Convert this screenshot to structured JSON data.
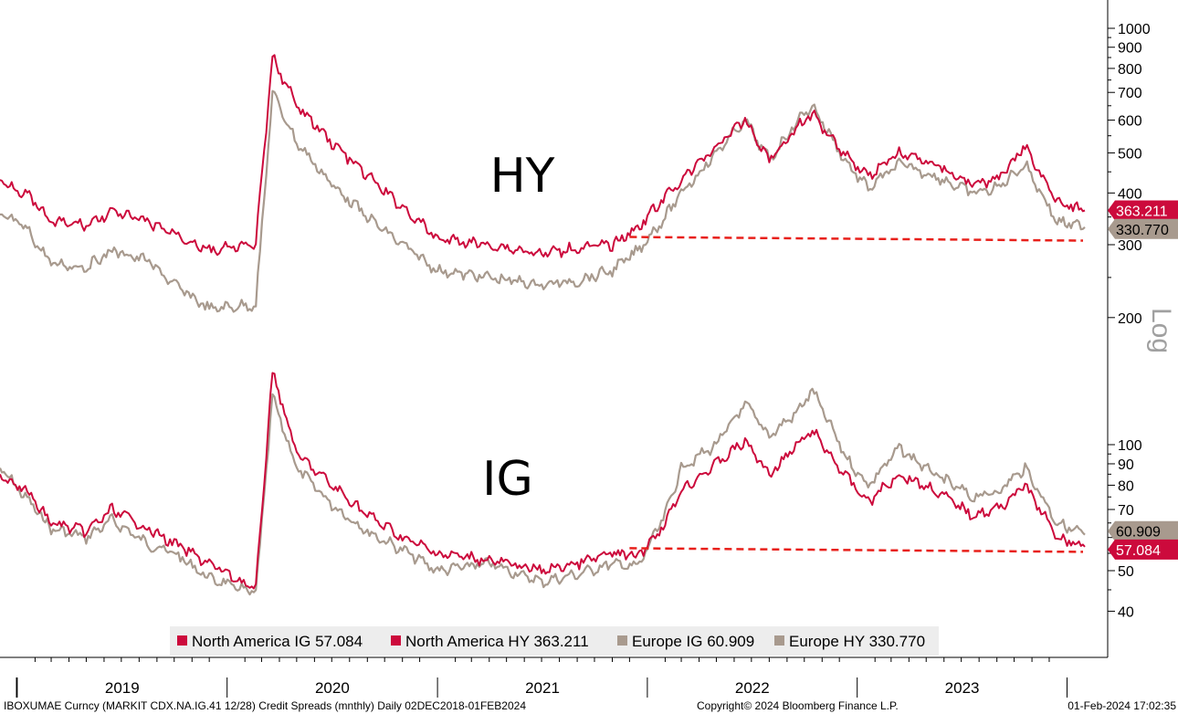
{
  "chart_data": {
    "type": "line",
    "scale": "log",
    "axis_label": "Log",
    "panels": [
      {
        "name": "HY",
        "y_ticks": [
          200,
          300,
          400,
          500,
          600,
          700,
          800,
          900,
          1000
        ],
        "reference_line": {
          "value": 310,
          "from": "2021-12-01",
          "to": "2024-02-01"
        }
      },
      {
        "name": "IG",
        "y_ticks": [
          40,
          50,
          60,
          70,
          80,
          90,
          100
        ],
        "reference_line": {
          "value": 56,
          "from": "2021-12-01",
          "to": "2024-02-01"
        }
      }
    ],
    "x_ticks": [
      "2019",
      "2020",
      "2021",
      "2022",
      "2023"
    ],
    "series": [
      {
        "name": "North America IG",
        "last": "57.084",
        "color": "#cc0a3c",
        "panel": "IG",
        "points": [
          [
            "2018-12-02",
            85
          ],
          [
            "2019-01-15",
            78
          ],
          [
            "2019-03-01",
            65
          ],
          [
            "2019-05-01",
            62
          ],
          [
            "2019-06-15",
            70
          ],
          [
            "2019-08-15",
            63
          ],
          [
            "2019-10-01",
            58
          ],
          [
            "2019-12-01",
            52
          ],
          [
            "2020-02-20",
            45
          ],
          [
            "2020-03-20",
            150
          ],
          [
            "2020-05-01",
            95
          ],
          [
            "2020-07-01",
            80
          ],
          [
            "2020-09-01",
            68
          ],
          [
            "2020-11-01",
            60
          ],
          [
            "2021-01-01",
            55
          ],
          [
            "2021-04-01",
            53
          ],
          [
            "2021-07-01",
            50
          ],
          [
            "2021-09-01",
            52
          ],
          [
            "2021-11-01",
            55
          ],
          [
            "2021-12-15",
            54
          ],
          [
            "2022-02-01",
            65
          ],
          [
            "2022-03-01",
            78
          ],
          [
            "2022-05-01",
            90
          ],
          [
            "2022-06-20",
            102
          ],
          [
            "2022-08-01",
            85
          ],
          [
            "2022-09-20",
            100
          ],
          [
            "2022-10-15",
            108
          ],
          [
            "2022-12-15",
            83
          ],
          [
            "2023-01-20",
            73
          ],
          [
            "2023-03-15",
            85
          ],
          [
            "2023-05-15",
            78
          ],
          [
            "2023-07-20",
            68
          ],
          [
            "2023-09-01",
            70
          ],
          [
            "2023-10-20",
            80
          ],
          [
            "2023-12-15",
            60
          ],
          [
            "2024-02-01",
            57
          ]
        ]
      },
      {
        "name": "North America HY",
        "last": "363.211",
        "color": "#cc0a3c",
        "panel": "HY",
        "points": [
          [
            "2018-12-02",
            430
          ],
          [
            "2019-01-15",
            400
          ],
          [
            "2019-03-01",
            340
          ],
          [
            "2019-05-01",
            335
          ],
          [
            "2019-06-15",
            360
          ],
          [
            "2019-08-15",
            340
          ],
          [
            "2019-10-01",
            320
          ],
          [
            "2019-12-01",
            290
          ],
          [
            "2020-02-20",
            300
          ],
          [
            "2020-03-20",
            850
          ],
          [
            "2020-05-01",
            650
          ],
          [
            "2020-07-01",
            530
          ],
          [
            "2020-09-01",
            440
          ],
          [
            "2020-11-01",
            370
          ],
          [
            "2021-01-01",
            310
          ],
          [
            "2021-04-01",
            300
          ],
          [
            "2021-07-01",
            285
          ],
          [
            "2021-09-01",
            295
          ],
          [
            "2021-11-01",
            300
          ],
          [
            "2021-12-15",
            330
          ],
          [
            "2022-02-01",
            390
          ],
          [
            "2022-03-01",
            430
          ],
          [
            "2022-05-01",
            520
          ],
          [
            "2022-06-20",
            600
          ],
          [
            "2022-08-01",
            480
          ],
          [
            "2022-09-20",
            580
          ],
          [
            "2022-10-15",
            620
          ],
          [
            "2022-12-15",
            490
          ],
          [
            "2023-01-20",
            440
          ],
          [
            "2023-03-15",
            500
          ],
          [
            "2023-05-15",
            470
          ],
          [
            "2023-07-20",
            420
          ],
          [
            "2023-09-01",
            430
          ],
          [
            "2023-10-20",
            520
          ],
          [
            "2023-12-15",
            380
          ],
          [
            "2024-02-01",
            363
          ]
        ]
      },
      {
        "name": "Europe IG",
        "last": "60.909",
        "color": "#a89a8e",
        "panel": "IG",
        "points": [
          [
            "2018-12-02",
            88
          ],
          [
            "2019-01-15",
            75
          ],
          [
            "2019-03-01",
            63
          ],
          [
            "2019-05-01",
            60
          ],
          [
            "2019-06-15",
            66
          ],
          [
            "2019-08-15",
            58
          ],
          [
            "2019-10-01",
            55
          ],
          [
            "2019-12-01",
            48
          ],
          [
            "2020-02-20",
            44
          ],
          [
            "2020-03-20",
            130
          ],
          [
            "2020-05-01",
            88
          ],
          [
            "2020-07-01",
            72
          ],
          [
            "2020-09-01",
            62
          ],
          [
            "2020-11-01",
            56
          ],
          [
            "2021-01-01",
            50
          ],
          [
            "2021-04-01",
            52
          ],
          [
            "2021-07-01",
            47
          ],
          [
            "2021-09-01",
            49
          ],
          [
            "2021-11-01",
            52
          ],
          [
            "2021-12-15",
            51
          ],
          [
            "2022-02-01",
            68
          ],
          [
            "2022-03-01",
            88
          ],
          [
            "2022-05-01",
            100
          ],
          [
            "2022-06-20",
            125
          ],
          [
            "2022-08-01",
            105
          ],
          [
            "2022-09-20",
            120
          ],
          [
            "2022-10-15",
            135
          ],
          [
            "2022-12-15",
            92
          ],
          [
            "2023-01-20",
            80
          ],
          [
            "2023-03-15",
            98
          ],
          [
            "2023-05-15",
            85
          ],
          [
            "2023-07-20",
            75
          ],
          [
            "2023-09-01",
            77
          ],
          [
            "2023-10-20",
            88
          ],
          [
            "2023-12-15",
            65
          ],
          [
            "2024-02-01",
            60.9
          ]
        ]
      },
      {
        "name": "Europe HY",
        "last": "330.770",
        "color": "#a89a8e",
        "panel": "HY",
        "points": [
          [
            "2018-12-02",
            355
          ],
          [
            "2019-01-15",
            330
          ],
          [
            "2019-03-01",
            270
          ],
          [
            "2019-05-01",
            265
          ],
          [
            "2019-06-15",
            290
          ],
          [
            "2019-08-15",
            275
          ],
          [
            "2019-10-01",
            240
          ],
          [
            "2019-12-01",
            210
          ],
          [
            "2020-02-20",
            215
          ],
          [
            "2020-03-20",
            700
          ],
          [
            "2020-05-01",
            530
          ],
          [
            "2020-07-01",
            420
          ],
          [
            "2020-09-01",
            350
          ],
          [
            "2020-11-01",
            300
          ],
          [
            "2021-01-01",
            260
          ],
          [
            "2021-04-01",
            250
          ],
          [
            "2021-07-01",
            240
          ],
          [
            "2021-09-01",
            245
          ],
          [
            "2021-11-01",
            260
          ],
          [
            "2021-12-15",
            290
          ],
          [
            "2022-02-01",
            350
          ],
          [
            "2022-03-01",
            400
          ],
          [
            "2022-05-01",
            500
          ],
          [
            "2022-06-20",
            600
          ],
          [
            "2022-08-01",
            480
          ],
          [
            "2022-09-20",
            600
          ],
          [
            "2022-10-15",
            650
          ],
          [
            "2022-12-15",
            470
          ],
          [
            "2023-01-20",
            410
          ],
          [
            "2023-03-15",
            470
          ],
          [
            "2023-05-15",
            440
          ],
          [
            "2023-07-20",
            400
          ],
          [
            "2023-09-01",
            410
          ],
          [
            "2023-10-20",
            470
          ],
          [
            "2023-12-15",
            340
          ],
          [
            "2024-02-01",
            330.8
          ]
        ]
      }
    ]
  },
  "labels": {
    "hy": "HY",
    "ig": "IG"
  },
  "legend": [
    {
      "label": "North America IG 57.084",
      "color": "#cc0a3c"
    },
    {
      "label": "North America HY 363.211",
      "color": "#cc0a3c"
    },
    {
      "label": "Europe IG 60.909",
      "color": "#a89a8e"
    },
    {
      "label": "Europe HY 330.770",
      "color": "#a89a8e"
    }
  ],
  "footer": {
    "left": "IBOXUMAE Curncy (MARKIT CDX.NA.IG.41 12/28) Credit Spreads (mnthly)  Daily 02DEC2018-01FEB2024",
    "center": "Copyright© 2024 Bloomberg Finance L.P.",
    "right": "01-Feb-2024 17:02:35"
  },
  "colors": {
    "na": "#cc0a3c",
    "eu": "#a89a8e",
    "reference": "#e8201b"
  }
}
